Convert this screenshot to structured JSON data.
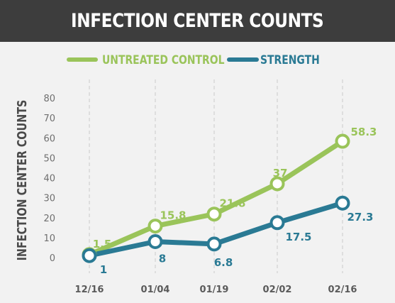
{
  "header": {
    "title": "INFECTION CENTER COUNTS"
  },
  "chart_data": {
    "type": "line",
    "title": "INFECTION CENTER COUNTS",
    "ylabel": "INFECTION CENTER COUNTS",
    "xlabel": "",
    "categories": [
      "12/16",
      "01/04",
      "01/19",
      "02/02",
      "02/16"
    ],
    "yticks": [
      0,
      10,
      20,
      30,
      40,
      50,
      60,
      70,
      80
    ],
    "ylim": [
      0,
      80
    ],
    "grid": "vertical dashed",
    "legend_position": "top",
    "series": [
      {
        "name": "UNTREATED CONTROL",
        "color": "#9ac45a",
        "values": [
          1.5,
          15.8,
          21.8,
          37,
          58.3
        ],
        "labels": [
          "1.5",
          "15.8",
          "21.8",
          "37",
          "58.3"
        ]
      },
      {
        "name": "STRENGTH",
        "color": "#2a7a94",
        "values": [
          1,
          8,
          6.8,
          17.5,
          27.3
        ],
        "labels": [
          "1",
          "8",
          "6.8",
          "17.5",
          "27.3"
        ]
      }
    ]
  }
}
